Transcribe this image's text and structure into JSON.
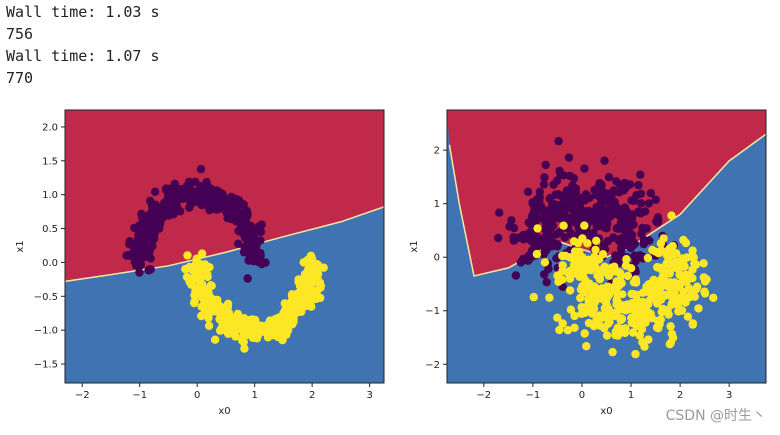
{
  "output": {
    "line1": "Wall time: 1.03 s",
    "line2": "756",
    "line3": "Wall time: 1.07 s",
    "line4": "770"
  },
  "watermark": "CSDN @时生丶",
  "colors": {
    "red_region": "#c1294a",
    "blue_region": "#3f73b2",
    "class0": "#440154",
    "class1": "#fde725",
    "boundary": "#f2e8a6"
  },
  "chart_data": [
    {
      "type": "scatter",
      "xlabel": "x0",
      "ylabel": "x1",
      "xlim": [
        -2.3,
        3.25
      ],
      "ylim": [
        -1.78,
        2.25
      ],
      "xticks": [
        -2,
        -1,
        0,
        1,
        2,
        3
      ],
      "yticks": [
        -1.5,
        -1.0,
        -0.5,
        0.0,
        0.5,
        1.0,
        1.5,
        2.0
      ],
      "ytick_labels": [
        "-1.5",
        "-1.0",
        "-0.5",
        "0.0",
        "0.5",
        "1.0",
        "1.5",
        "2.0"
      ],
      "dataset": "moons",
      "boundary": [
        [
          -2.3,
          -0.28
        ],
        [
          -1.5,
          -0.18
        ],
        [
          -0.5,
          -0.05
        ],
        [
          0.5,
          0.15
        ],
        [
          1.5,
          0.38
        ],
        [
          2.5,
          0.6
        ],
        [
          3.25,
          0.82
        ]
      ],
      "class0_center": [
        [
          0.0,
          0.5
        ],
        1.0
      ],
      "class1_center": [
        [
          1.0,
          0.0
        ],
        -1.0
      ],
      "radius": 1.0,
      "noise": 0.1
    },
    {
      "type": "scatter",
      "xlabel": "x0",
      "ylabel": "x1",
      "xlim": [
        -2.75,
        3.75
      ],
      "ylim": [
        -2.35,
        2.75
      ],
      "xticks": [
        -2,
        -1,
        0,
        1,
        2,
        3
      ],
      "yticks": [
        -2,
        -1,
        0,
        1,
        2
      ],
      "ytick_labels": [
        "-2",
        "-1",
        "0",
        "1",
        "2"
      ],
      "dataset": "moons",
      "boundary": [
        [
          -2.7,
          2.1
        ],
        [
          -2.5,
          1.0
        ],
        [
          -2.2,
          -0.35
        ],
        [
          -1.5,
          -0.2
        ],
        [
          -0.5,
          0.3
        ],
        [
          0.5,
          0.0
        ],
        [
          1.0,
          0.2
        ],
        [
          2.0,
          0.8
        ],
        [
          3.0,
          1.8
        ],
        [
          3.75,
          2.3
        ]
      ],
      "class0_center": [
        [
          0.0,
          0.5
        ],
        1.0
      ],
      "class1_center": [
        [
          1.0,
          0.0
        ],
        -1.0
      ],
      "radius": 1.0,
      "noise": 0.35
    }
  ]
}
